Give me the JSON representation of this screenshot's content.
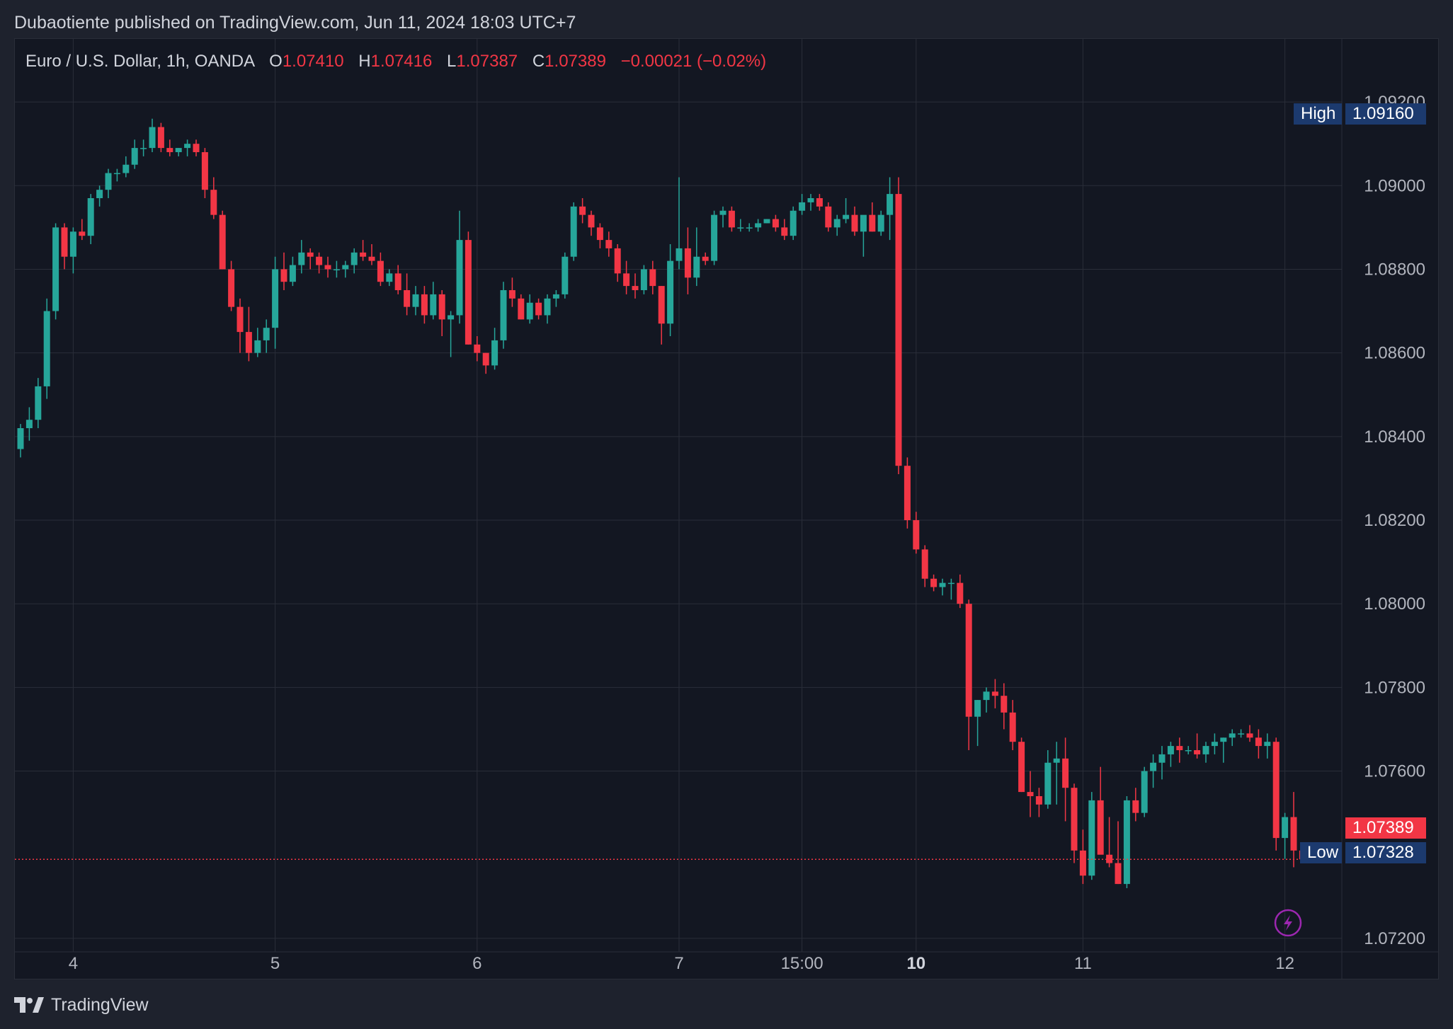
{
  "header": {
    "published": "Dubaotiente published on TradingView.com, Jun 11, 2024 18:03 UTC+7"
  },
  "legend": {
    "symbol": "Euro / U.S. Dollar, 1h, OANDA",
    "o_label": "O",
    "o": "1.07410",
    "h_label": "H",
    "h": "1.07416",
    "l_label": "L",
    "l": "1.07387",
    "c_label": "C",
    "c": "1.07389",
    "change": "−0.00021 (−0.02%)"
  },
  "markers": {
    "high_label": "High",
    "high_value": "1.09160",
    "low_label": "Low",
    "low_value": "1.07328",
    "last_value": "1.07389"
  },
  "footer": {
    "brand": "TradingView"
  },
  "icons": {
    "flash": "lightning-icon",
    "logo": "tradingview-logo-icon"
  },
  "colors": {
    "up": "#26a69a",
    "down": "#f23645",
    "background": "#131722",
    "grid": "#2a2e39",
    "text": "#b2b5be",
    "marker": "#1c3a6e",
    "flash": "#9c27b0"
  },
  "chart_data": {
    "type": "candlestick",
    "symbol": "EURUSD",
    "interval": "1h",
    "ylim": [
      1.071,
      1.093
    ],
    "y_ticks": [
      "1.09200",
      "1.09000",
      "1.08800",
      "1.08600",
      "1.08400",
      "1.08200",
      "1.08000",
      "1.07800",
      "1.07600",
      "1.07200"
    ],
    "x_ticks": [
      {
        "label": "4",
        "bar": 6,
        "bold": false
      },
      {
        "label": "5",
        "bar": 29,
        "bold": false
      },
      {
        "label": "6",
        "bar": 52,
        "bold": false
      },
      {
        "label": "7",
        "bar": 75,
        "bold": false
      },
      {
        "label": "15:00",
        "bar": 89,
        "bold": false
      },
      {
        "label": "10",
        "bar": 102,
        "bold": true
      },
      {
        "label": "11",
        "bar": 121,
        "bold": false
      },
      {
        "label": "12",
        "bar": 144,
        "bold": false
      }
    ],
    "high": 1.0916,
    "low": 1.07328,
    "last": 1.07389,
    "series": [
      {
        "name": "EURUSD",
        "ohlc": [
          [
            1.0837,
            1.0843,
            1.0835,
            1.0842
          ],
          [
            1.0842,
            1.0847,
            1.0839,
            1.0844
          ],
          [
            1.0844,
            1.0854,
            1.0842,
            1.0852
          ],
          [
            1.0852,
            1.0873,
            1.0849,
            1.087
          ],
          [
            1.087,
            1.0891,
            1.0868,
            1.089
          ],
          [
            1.089,
            1.0891,
            1.088,
            1.0883
          ],
          [
            1.0883,
            1.089,
            1.0879,
            1.0889
          ],
          [
            1.0889,
            1.0892,
            1.0887,
            1.0888
          ],
          [
            1.0888,
            1.0898,
            1.0886,
            1.0897
          ],
          [
            1.0897,
            1.09,
            1.0895,
            1.0899
          ],
          [
            1.0899,
            1.0904,
            1.0897,
            1.0903
          ],
          [
            1.0903,
            1.0904,
            1.0901,
            1.0903
          ],
          [
            1.0903,
            1.0907,
            1.0902,
            1.0905
          ],
          [
            1.0905,
            1.0911,
            1.0904,
            1.0909
          ],
          [
            1.0909,
            1.0911,
            1.0907,
            1.0909
          ],
          [
            1.0909,
            1.0916,
            1.0908,
            1.0914
          ],
          [
            1.0914,
            1.0915,
            1.0908,
            1.0909
          ],
          [
            1.0909,
            1.0911,
            1.0907,
            1.0908
          ],
          [
            1.0908,
            1.0909,
            1.0907,
            1.0909
          ],
          [
            1.0909,
            1.0911,
            1.0907,
            1.091
          ],
          [
            1.091,
            1.0911,
            1.0907,
            1.0908
          ],
          [
            1.0908,
            1.0909,
            1.0897,
            1.0899
          ],
          [
            1.0899,
            1.0902,
            1.0892,
            1.0893
          ],
          [
            1.0893,
            1.0894,
            1.088,
            1.088
          ],
          [
            1.088,
            1.0882,
            1.087,
            1.0871
          ],
          [
            1.0871,
            1.0873,
            1.086,
            1.0865
          ],
          [
            1.0865,
            1.0871,
            1.0858,
            1.086
          ],
          [
            1.086,
            1.0866,
            1.0859,
            1.0863
          ],
          [
            1.0863,
            1.0868,
            1.086,
            1.0866
          ],
          [
            1.0866,
            1.0883,
            1.0861,
            1.088
          ],
          [
            1.088,
            1.0884,
            1.0875,
            1.0877
          ],
          [
            1.0877,
            1.0883,
            1.0876,
            1.0881
          ],
          [
            1.0881,
            1.0887,
            1.0879,
            1.0884
          ],
          [
            1.0884,
            1.0885,
            1.088,
            1.0883
          ],
          [
            1.0883,
            1.0884,
            1.0879,
            1.0881
          ],
          [
            1.0881,
            1.0883,
            1.0878,
            1.088
          ],
          [
            1.088,
            1.0882,
            1.0878,
            1.088
          ],
          [
            1.088,
            1.0882,
            1.0878,
            1.0881
          ],
          [
            1.0881,
            1.0885,
            1.0879,
            1.0884
          ],
          [
            1.0884,
            1.0887,
            1.0882,
            1.0883
          ],
          [
            1.0883,
            1.0886,
            1.0881,
            1.0882
          ],
          [
            1.0882,
            1.0884,
            1.0876,
            1.0877
          ],
          [
            1.0877,
            1.088,
            1.0876,
            1.0879
          ],
          [
            1.0879,
            1.0881,
            1.0874,
            1.0875
          ],
          [
            1.0875,
            1.0879,
            1.0869,
            1.0871
          ],
          [
            1.0871,
            1.0876,
            1.0869,
            1.0874
          ],
          [
            1.0874,
            1.0876,
            1.0867,
            1.0869
          ],
          [
            1.0869,
            1.0877,
            1.0868,
            1.0874
          ],
          [
            1.0874,
            1.0875,
            1.0864,
            1.0868
          ],
          [
            1.0868,
            1.087,
            1.0859,
            1.0869
          ],
          [
            1.0869,
            1.0894,
            1.0867,
            1.0887
          ],
          [
            1.0887,
            1.0889,
            1.0862,
            1.0862
          ],
          [
            1.0862,
            1.0864,
            1.0858,
            1.086
          ],
          [
            1.086,
            1.086,
            1.0855,
            1.0857
          ],
          [
            1.0857,
            1.0866,
            1.0856,
            1.0863
          ],
          [
            1.0863,
            1.0877,
            1.0861,
            1.0875
          ],
          [
            1.0875,
            1.0878,
            1.0871,
            1.0873
          ],
          [
            1.0873,
            1.0874,
            1.0868,
            1.0868
          ],
          [
            1.0868,
            1.0874,
            1.0867,
            1.0872
          ],
          [
            1.0872,
            1.0873,
            1.0868,
            1.0869
          ],
          [
            1.0869,
            1.0874,
            1.0867,
            1.0873
          ],
          [
            1.0873,
            1.0875,
            1.0871,
            1.0874
          ],
          [
            1.0874,
            1.0884,
            1.0873,
            1.0883
          ],
          [
            1.0883,
            1.0896,
            1.0882,
            1.0895
          ],
          [
            1.0895,
            1.0897,
            1.0891,
            1.0893
          ],
          [
            1.0893,
            1.0894,
            1.0888,
            1.089
          ],
          [
            1.089,
            1.0891,
            1.0885,
            1.0887
          ],
          [
            1.0887,
            1.0889,
            1.0883,
            1.0885
          ],
          [
            1.0885,
            1.0886,
            1.0877,
            1.0879
          ],
          [
            1.0879,
            1.0882,
            1.0874,
            1.0876
          ],
          [
            1.0876,
            1.0879,
            1.0873,
            1.0875
          ],
          [
            1.0875,
            1.0881,
            1.0874,
            1.088
          ],
          [
            1.088,
            1.0882,
            1.0874,
            1.0876
          ],
          [
            1.0876,
            1.0876,
            1.0862,
            1.0867
          ],
          [
            1.0867,
            1.0886,
            1.0864,
            1.0882
          ],
          [
            1.0882,
            1.0902,
            1.088,
            1.0885
          ],
          [
            1.0885,
            1.089,
            1.0874,
            1.0878
          ],
          [
            1.0878,
            1.089,
            1.0876,
            1.0883
          ],
          [
            1.0883,
            1.0884,
            1.0881,
            1.0882
          ],
          [
            1.0882,
            1.0894,
            1.0881,
            1.0893
          ],
          [
            1.0893,
            1.0895,
            1.089,
            1.0894
          ],
          [
            1.0894,
            1.0895,
            1.0889,
            1.089
          ],
          [
            1.089,
            1.0892,
            1.0889,
            1.089
          ],
          [
            1.089,
            1.0891,
            1.0889,
            1.089
          ],
          [
            1.089,
            1.0892,
            1.0889,
            1.0891
          ],
          [
            1.0891,
            1.0892,
            1.0891,
            1.0892
          ],
          [
            1.0892,
            1.0893,
            1.0889,
            1.089
          ],
          [
            1.089,
            1.0892,
            1.0887,
            1.0888
          ],
          [
            1.0888,
            1.0895,
            1.0887,
            1.0894
          ],
          [
            1.0894,
            1.0898,
            1.0893,
            1.0896
          ],
          [
            1.0896,
            1.0898,
            1.0894,
            1.0897
          ],
          [
            1.0897,
            1.0898,
            1.0894,
            1.0895
          ],
          [
            1.0895,
            1.0896,
            1.0889,
            1.089
          ],
          [
            1.089,
            1.0893,
            1.0888,
            1.0892
          ],
          [
            1.0892,
            1.0897,
            1.0891,
            1.0893
          ],
          [
            1.0893,
            1.0895,
            1.0888,
            1.0889
          ],
          [
            1.0889,
            1.0892,
            1.0883,
            1.0893
          ],
          [
            1.0893,
            1.0896,
            1.0889,
            1.0889
          ],
          [
            1.0889,
            1.0894,
            1.0888,
            1.0893
          ],
          [
            1.0893,
            1.0902,
            1.0887,
            1.0898
          ],
          [
            1.0898,
            1.0902,
            1.0831,
            1.0833
          ],
          [
            1.0833,
            1.0835,
            1.0818,
            1.082
          ],
          [
            1.082,
            1.0822,
            1.0812,
            1.0813
          ],
          [
            1.0813,
            1.0814,
            1.0804,
            1.0806
          ],
          [
            1.0806,
            1.0807,
            1.0803,
            1.0804
          ],
          [
            1.0804,
            1.0806,
            1.0802,
            1.0805
          ],
          [
            1.0805,
            1.0806,
            1.0801,
            1.0805
          ],
          [
            1.0805,
            1.0807,
            1.0799,
            1.08
          ],
          [
            1.08,
            1.0801,
            1.0765,
            1.0773
          ],
          [
            1.0773,
            1.0777,
            1.0766,
            1.0777
          ],
          [
            1.0777,
            1.078,
            1.0774,
            1.0779
          ],
          [
            1.0779,
            1.0782,
            1.0775,
            1.0778
          ],
          [
            1.0778,
            1.0781,
            1.077,
            1.0774
          ],
          [
            1.0774,
            1.0777,
            1.0765,
            1.0767
          ],
          [
            1.0767,
            1.0768,
            1.0755,
            1.0755
          ],
          [
            1.0755,
            1.076,
            1.0749,
            1.0754
          ],
          [
            1.0754,
            1.0756,
            1.0749,
            1.0752
          ],
          [
            1.0752,
            1.0765,
            1.0751,
            1.0762
          ],
          [
            1.0762,
            1.0767,
            1.0752,
            1.0763
          ],
          [
            1.0763,
            1.0768,
            1.0748,
            1.0756
          ],
          [
            1.0756,
            1.0757,
            1.0738,
            1.0741
          ],
          [
            1.0741,
            1.0746,
            1.0733,
            1.0735
          ],
          [
            1.0735,
            1.0755,
            1.0734,
            1.0753
          ],
          [
            1.0753,
            1.0761,
            1.0741,
            1.074
          ],
          [
            1.074,
            1.0749,
            1.0737,
            1.0738
          ],
          [
            1.0738,
            1.0748,
            1.0733,
            1.0733
          ],
          [
            1.0733,
            1.0754,
            1.0732,
            1.0753
          ],
          [
            1.0753,
            1.0756,
            1.0748,
            1.075
          ],
          [
            1.075,
            1.0761,
            1.0749,
            1.076
          ],
          [
            1.076,
            1.0764,
            1.0756,
            1.0762
          ],
          [
            1.0762,
            1.0766,
            1.0758,
            1.0764
          ],
          [
            1.0764,
            1.0767,
            1.0761,
            1.0766
          ],
          [
            1.0766,
            1.0768,
            1.0762,
            1.0765
          ],
          [
            1.0765,
            1.0766,
            1.0764,
            1.0765
          ],
          [
            1.0765,
            1.0769,
            1.0763,
            1.0764
          ],
          [
            1.0764,
            1.0767,
            1.0762,
            1.0766
          ],
          [
            1.0766,
            1.0769,
            1.0764,
            1.0767
          ],
          [
            1.0767,
            1.0768,
            1.0762,
            1.0768
          ],
          [
            1.0768,
            1.077,
            1.0766,
            1.0769
          ],
          [
            1.0769,
            1.077,
            1.0768,
            1.0769
          ],
          [
            1.0769,
            1.0771,
            1.0767,
            1.0768
          ],
          [
            1.0768,
            1.077,
            1.0763,
            1.0766
          ],
          [
            1.0766,
            1.0769,
            1.0763,
            1.0767
          ],
          [
            1.0767,
            1.0768,
            1.0741,
            1.0744
          ],
          [
            1.0744,
            1.075,
            1.0739,
            1.0749
          ],
          [
            1.0749,
            1.0755,
            1.0737,
            1.0741
          ],
          [
            1.0741,
            1.07416,
            1.07387,
            1.07389
          ]
        ]
      }
    ]
  }
}
